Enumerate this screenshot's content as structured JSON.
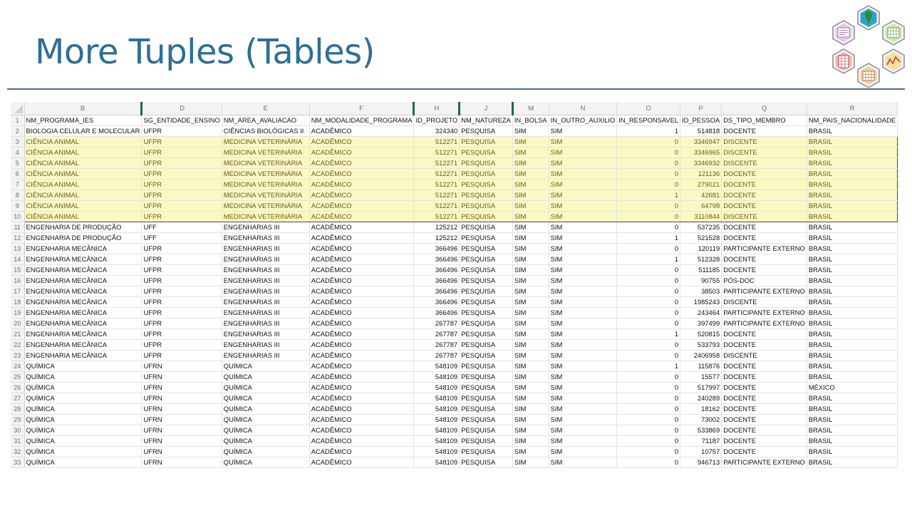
{
  "title": "More Tuples (Tables)",
  "colors": {
    "title": "#2e6e96",
    "highlight_fill": "#fbf9c3",
    "highlight_text": "#6b5a14",
    "highlight_border": "#4a4a4a",
    "column_separator": "#1d6b3c"
  },
  "logo": {
    "icons": [
      "document-icon",
      "south-america-map-icon",
      "grid-icon",
      "chart-line-icon",
      "network-icon",
      "spreadsheet-icon"
    ]
  },
  "sheet": {
    "column_letters": [
      "B",
      "D",
      "E",
      "F",
      "H",
      "J",
      "M",
      "N",
      "O",
      "P",
      "Q",
      "R"
    ],
    "rows": [
      {
        "n": "1",
        "cells": [
          "NM_PROGRAMA_IES",
          "SG_ENTIDADE_ENSINO",
          "NM_AREA_AVALIACAO",
          "NM_MODALIDADE_PROGRAMA",
          "ID_PROJETO",
          "NM_NATUREZA",
          "IN_BOLSA",
          "IN_OUTRO_AUXILIO",
          "IN_RESPONSAVEL",
          "ID_PESSOA",
          "DS_TIPO_MEMBRO",
          "NM_PAIS_NACIONALIDADE"
        ]
      },
      {
        "n": "2",
        "cells": [
          "BIOLOGIA CELULAR E MOLECULAR",
          "UFPR",
          "CIÊNCIAS BIOLÓGICAS II",
          "ACADÊMICO",
          "324340",
          "PESQUISA",
          "SIM",
          "SIM",
          "1",
          "514818",
          "DOCENTE",
          "BRASIL"
        ]
      },
      {
        "n": "3",
        "cells": [
          "CIÊNCIA ANIMAL",
          "UFPR",
          "MEDICINA VETERINÁRIA",
          "ACADÊMICO",
          "512271",
          "PESQUISA",
          "SIM",
          "SIM",
          "0",
          "3346947",
          "DISCENTE",
          "BRASIL"
        ]
      },
      {
        "n": "4",
        "cells": [
          "CIÊNCIA ANIMAL",
          "UFPR",
          "MEDICINA VETERINÁRIA",
          "ACADÊMICO",
          "512271",
          "PESQUISA",
          "SIM",
          "SIM",
          "0",
          "3346965",
          "DISCENTE",
          "BRASIL"
        ]
      },
      {
        "n": "5",
        "cells": [
          "CIÊNCIA ANIMAL",
          "UFPR",
          "MEDICINA VETERINÁRIA",
          "ACADÊMICO",
          "512271",
          "PESQUISA",
          "SIM",
          "SIM",
          "0",
          "3346932",
          "DISCENTE",
          "BRASIL"
        ]
      },
      {
        "n": "6",
        "cells": [
          "CIÊNCIA ANIMAL",
          "UFPR",
          "MEDICINA VETERINÁRIA",
          "ACADÊMICO",
          "512271",
          "PESQUISA",
          "SIM",
          "SIM",
          "0",
          "121136",
          "DOCENTE",
          "BRASIL"
        ]
      },
      {
        "n": "7",
        "cells": [
          "CIÊNCIA ANIMAL",
          "UFPR",
          "MEDICINA VETERINÁRIA",
          "ACADÊMICO",
          "512271",
          "PESQUISA",
          "SIM",
          "SIM",
          "0",
          "279021",
          "DOCENTE",
          "BRASIL"
        ]
      },
      {
        "n": "8",
        "cells": [
          "CIÊNCIA ANIMAL",
          "UFPR",
          "MEDICINA VETERINÁRIA",
          "ACADÊMICO",
          "512271",
          "PESQUISA",
          "SIM",
          "SIM",
          "1",
          "42681",
          "DOCENTE",
          "BRASIL"
        ]
      },
      {
        "n": "9",
        "cells": [
          "CIÊNCIA ANIMAL",
          "UFPR",
          "MEDICINA VETERINÁRIA",
          "ACADÊMICO",
          "512271",
          "PESQUISA",
          "SIM",
          "SIM",
          "0",
          "64798",
          "DOCENTE",
          "BRASIL"
        ]
      },
      {
        "n": "10",
        "cells": [
          "CIÊNCIA ANIMAL",
          "UFPR",
          "MEDICINA VETERINÁRIA",
          "ACADÊMICO",
          "512271",
          "PESQUISA",
          "SIM",
          "SIM",
          "0",
          "3110844",
          "DISCENTE",
          "BRASIL"
        ]
      },
      {
        "n": "11",
        "cells": [
          "ENGENHARIA DE PRODUÇÃO",
          "UFF",
          "ENGENHARIAS III",
          "ACADÊMICO",
          "125212",
          "PESQUISA",
          "SIM",
          "SIM",
          "0",
          "537235",
          "DOCENTE",
          "BRASIL"
        ]
      },
      {
        "n": "12",
        "cells": [
          "ENGENHARIA DE PRODUÇÃO",
          "UFF",
          "ENGENHARIAS III",
          "ACADÊMICO",
          "125212",
          "PESQUISA",
          "SIM",
          "SIM",
          "1",
          "521528",
          "DOCENTE",
          "BRASIL"
        ]
      },
      {
        "n": "13",
        "cells": [
          "ENGENHARIA MECÂNICA",
          "UFPR",
          "ENGENHARIAS III",
          "ACADÊMICO",
          "366496",
          "PESQUISA",
          "SIM",
          "SIM",
          "0",
          "120119",
          "PARTICIPANTE EXTERNO",
          "BRASIL"
        ]
      },
      {
        "n": "14",
        "cells": [
          "ENGENHARIA MECÂNICA",
          "UFPR",
          "ENGENHARIAS III",
          "ACADÊMICO",
          "366496",
          "PESQUISA",
          "SIM",
          "SIM",
          "1",
          "512328",
          "DOCENTE",
          "BRASIL"
        ]
      },
      {
        "n": "15",
        "cells": [
          "ENGENHARIA MECÂNICA",
          "UFPR",
          "ENGENHARIAS III",
          "ACADÊMICO",
          "366496",
          "PESQUISA",
          "SIM",
          "SIM",
          "0",
          "511185",
          "DOCENTE",
          "BRASIL"
        ]
      },
      {
        "n": "16",
        "cells": [
          "ENGENHARIA MECÂNICA",
          "UFPR",
          "ENGENHARIAS III",
          "ACADÊMICO",
          "366496",
          "PESQUISA",
          "SIM",
          "SIM",
          "0",
          "90755",
          "PÓS-DOC",
          "BRASIL"
        ]
      },
      {
        "n": "17",
        "cells": [
          "ENGENHARIA MECÂNICA",
          "UFPR",
          "ENGENHARIAS III",
          "ACADÊMICO",
          "366496",
          "PESQUISA",
          "SIM",
          "SIM",
          "0",
          "38503",
          "PARTICIPANTE EXTERNO",
          "BRASIL"
        ]
      },
      {
        "n": "18",
        "cells": [
          "ENGENHARIA MECÂNICA",
          "UFPR",
          "ENGENHARIAS III",
          "ACADÊMICO",
          "366496",
          "PESQUISA",
          "SIM",
          "SIM",
          "0",
          "1985243",
          "DISCENTE",
          "BRASIL"
        ]
      },
      {
        "n": "19",
        "cells": [
          "ENGENHARIA MECÂNICA",
          "UFPR",
          "ENGENHARIAS III",
          "ACADÊMICO",
          "366496",
          "PESQUISA",
          "SIM",
          "SIM",
          "0",
          "243464",
          "PARTICIPANTE EXTERNO",
          "BRASIL"
        ]
      },
      {
        "n": "20",
        "cells": [
          "ENGENHARIA MECÂNICA",
          "UFPR",
          "ENGENHARIAS III",
          "ACADÊMICO",
          "267787",
          "PESQUISA",
          "SIM",
          "SIM",
          "0",
          "397499",
          "PARTICIPANTE EXTERNO",
          "BRASIL"
        ]
      },
      {
        "n": "21",
        "cells": [
          "ENGENHARIA MECÂNICA",
          "UFPR",
          "ENGENHARIAS III",
          "ACADÊMICO",
          "267787",
          "PESQUISA",
          "SIM",
          "SIM",
          "1",
          "520815",
          "DOCENTE",
          "BRASIL"
        ]
      },
      {
        "n": "22",
        "cells": [
          "ENGENHARIA MECÂNICA",
          "UFPR",
          "ENGENHARIAS III",
          "ACADÊMICO",
          "267787",
          "PESQUISA",
          "SIM",
          "SIM",
          "0",
          "533793",
          "DOCENTE",
          "BRASIL"
        ]
      },
      {
        "n": "23",
        "cells": [
          "ENGENHARIA MECÂNICA",
          "UFPR",
          "ENGENHARIAS III",
          "ACADÊMICO",
          "267787",
          "PESQUISA",
          "SIM",
          "SIM",
          "0",
          "2406958",
          "DISCENTE",
          "BRASIL"
        ]
      },
      {
        "n": "24",
        "cells": [
          "QUÍMICA",
          "UFRN",
          "QUÍMICA",
          "ACADÊMICO",
          "548109",
          "PESQUISA",
          "SIM",
          "SIM",
          "1",
          "115876",
          "DOCENTE",
          "BRASIL"
        ]
      },
      {
        "n": "25",
        "cells": [
          "QUÍMICA",
          "UFRN",
          "QUÍMICA",
          "ACADÊMICO",
          "548109",
          "PESQUISA",
          "SIM",
          "SIM",
          "0",
          "15577",
          "DOCENTE",
          "BRASIL"
        ]
      },
      {
        "n": "26",
        "cells": [
          "QUÍMICA",
          "UFRN",
          "QUÍMICA",
          "ACADÊMICO",
          "548109",
          "PESQUISA",
          "SIM",
          "SIM",
          "0",
          "517997",
          "DOCENTE",
          "MÉXICO"
        ]
      },
      {
        "n": "27",
        "cells": [
          "QUÍMICA",
          "UFRN",
          "QUÍMICA",
          "ACADÊMICO",
          "548109",
          "PESQUISA",
          "SIM",
          "SIM",
          "0",
          "240289",
          "DOCENTE",
          "BRASIL"
        ]
      },
      {
        "n": "28",
        "cells": [
          "QUÍMICA",
          "UFRN",
          "QUÍMICA",
          "ACADÊMICO",
          "548109",
          "PESQUISA",
          "SIM",
          "SIM",
          "0",
          "18162",
          "DOCENTE",
          "BRASIL"
        ]
      },
      {
        "n": "29",
        "cells": [
          "QUÍMICA",
          "UFRN",
          "QUÍMICA",
          "ACADÊMICO",
          "548109",
          "PESQUISA",
          "SIM",
          "SIM",
          "0",
          "73002",
          "DOCENTE",
          "BRASIL"
        ]
      },
      {
        "n": "30",
        "cells": [
          "QUÍMICA",
          "UFRN",
          "QUÍMICA",
          "ACADÊMICO",
          "548109",
          "PESQUISA",
          "SIM",
          "SIM",
          "0",
          "533869",
          "DOCENTE",
          "BRASIL"
        ]
      },
      {
        "n": "31",
        "cells": [
          "QUÍMICA",
          "UFRN",
          "QUÍMICA",
          "ACADÊMICO",
          "548109",
          "PESQUISA",
          "SIM",
          "SIM",
          "0",
          "71187",
          "DOCENTE",
          "BRASIL"
        ]
      },
      {
        "n": "32",
        "cells": [
          "QUÍMICA",
          "UFRN",
          "QUÍMICA",
          "ACADÊMICO",
          "548109",
          "PESQUISA",
          "SIM",
          "SIM",
          "0",
          "10757",
          "DOCENTE",
          "BRASIL"
        ]
      },
      {
        "n": "33",
        "cells": [
          "QUÍMICA",
          "UFRN",
          "QUÍMICA",
          "ACADÊMICO",
          "548109",
          "PESQUISA",
          "SIM",
          "SIM",
          "0",
          "946713",
          "PARTICIPANTE EXTERNO",
          "BRASIL"
        ]
      }
    ],
    "highlighted_rows": [
      "3",
      "4",
      "5",
      "6",
      "7",
      "8",
      "9",
      "10"
    ],
    "numeric_columns": [
      "H",
      "O",
      "P"
    ],
    "separator_columns": [
      "D",
      "H",
      "J",
      "M"
    ]
  }
}
